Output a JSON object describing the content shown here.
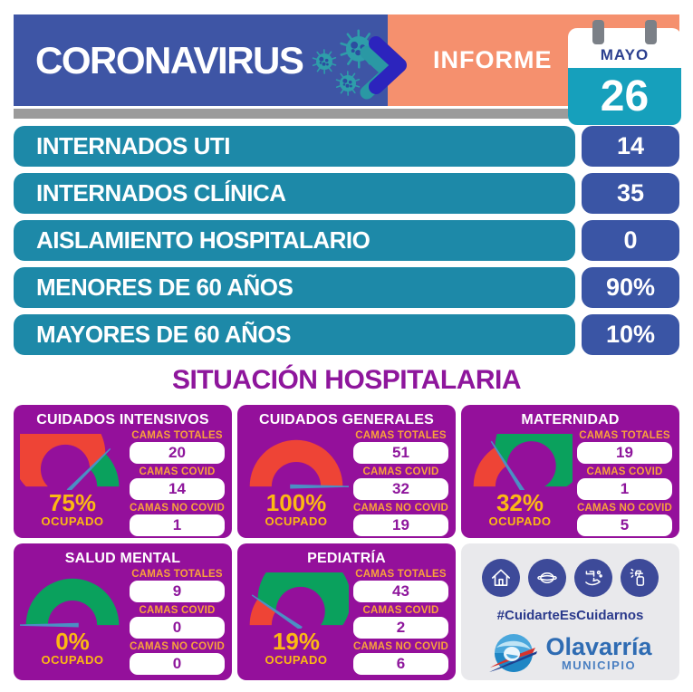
{
  "header": {
    "title": "CORONAVIRUS",
    "report_label": "INFORME",
    "calendar": {
      "month": "MAYO",
      "day": "26"
    }
  },
  "stats_rows": [
    {
      "label": "INTERNADOS UTI",
      "value": "14"
    },
    {
      "label": "INTERNADOS CLÍNICA",
      "value": "35"
    },
    {
      "label": "AISLAMIENTO HOSPITALARIO",
      "value": "0"
    },
    {
      "label": "MENORES DE 60 AÑOS",
      "value": "90%"
    },
    {
      "label": "MAYORES DE 60 AÑOS",
      "value": "10%"
    }
  ],
  "section_title": "SITUACIÓN HOSPITALARIA",
  "card_field_labels": [
    "CAMAS TOTALES",
    "CAMAS COVID",
    "CAMAS NO COVID"
  ],
  "occupied_label": "OCUPADO",
  "chart_data": [
    {
      "type": "gauge",
      "title": "CUIDADOS INTENSIVOS",
      "percent_occupied": 75,
      "camas_totales": 20,
      "camas_covid": 14,
      "camas_no_covid": 1
    },
    {
      "type": "gauge",
      "title": "CUIDADOS GENERALES",
      "percent_occupied": 100,
      "camas_totales": 51,
      "camas_covid": 32,
      "camas_no_covid": 19
    },
    {
      "type": "gauge",
      "title": "MATERNIDAD",
      "percent_occupied": 32,
      "camas_totales": 19,
      "camas_covid": 1,
      "camas_no_covid": 5
    },
    {
      "type": "gauge",
      "title": "SALUD MENTAL",
      "percent_occupied": 0,
      "camas_totales": 9,
      "camas_covid": 0,
      "camas_no_covid": 0
    },
    {
      "type": "gauge",
      "title": "PEDIATRÍA",
      "percent_occupied": 19,
      "camas_totales": 43,
      "camas_covid": 2,
      "camas_no_covid": 6
    }
  ],
  "info": {
    "icons": [
      "stay-home-icon",
      "face-mask-icon",
      "hand-washing-icon",
      "disinfectant-spray-icon"
    ],
    "hashtag": "#CuidarteEsCuidarnos",
    "logo_name": "Olavarría",
    "logo_sub": "MUNICIPIO"
  },
  "colors": {
    "header_blue": "#3e55a5",
    "orange": "#f5906e",
    "teal": "#1d89a8",
    "value_blue": "#3a55a5",
    "card_purple": "#94109b",
    "title_purple": "#8e169c",
    "accent_yellow": "#fcb813",
    "label_orange": "#f9a23b",
    "gauge_red": "#ee4436",
    "gauge_green": "#0aa15d",
    "needle_blue": "#4b8fc4",
    "calendar_teal": "#16a0bc"
  }
}
